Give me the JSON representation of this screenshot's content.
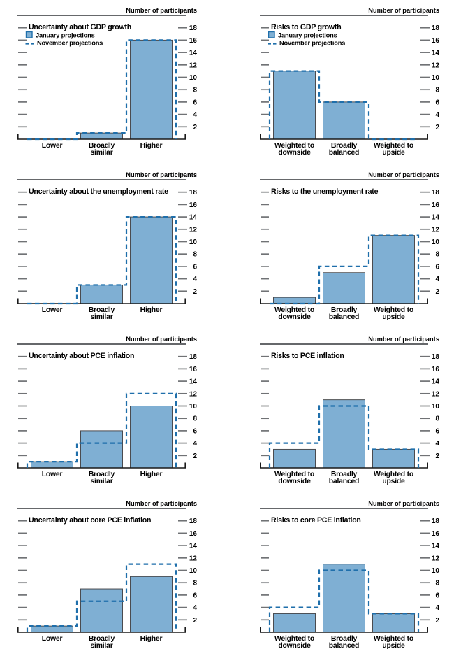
{
  "page": {
    "background": "#ffffff"
  },
  "palette": {
    "bar_fill": "#7fafd3",
    "bar_stroke": "#4a4b4f",
    "dashed_line": "#1f6fab",
    "tick": "#707275",
    "top_rule": "#515256",
    "baseline": "#1a1a1a",
    "text": "#000000"
  },
  "legend": {
    "january_label": "January projections",
    "november_label": "November projections",
    "january_swatch_icon": "bar-swatch-icon",
    "november_swatch_icon": "dashed-line-icon"
  },
  "axis": {
    "unit_label": "Number of participants",
    "yticks": [
      2,
      4,
      6,
      8,
      10,
      12,
      14,
      16,
      18
    ],
    "ylim": [
      0,
      19
    ],
    "grid": false,
    "tick_side": "right-labeled-left-unlabeled"
  },
  "chart_data": [
    {
      "type": "bar",
      "title": "Uncertainty about GDP growth",
      "top_right_label": "Number of participants",
      "categories": [
        [
          "Lower"
        ],
        [
          "Broadly",
          "similar"
        ],
        [
          "Higher"
        ]
      ],
      "series": [
        {
          "name": "January projections",
          "style": "bar",
          "values": [
            0,
            1,
            16
          ]
        },
        {
          "name": "November projections",
          "style": "dashed-step-outline",
          "values": [
            0,
            1,
            16
          ]
        }
      ],
      "show_legend": true,
      "ylim": [
        0,
        19
      ],
      "yticks": [
        2,
        4,
        6,
        8,
        10,
        12,
        14,
        16,
        18
      ],
      "legend_position": "top-left"
    },
    {
      "type": "bar",
      "title": "Risks to GDP growth",
      "top_right_label": "Number of participants",
      "categories": [
        [
          "Weighted to",
          "downside"
        ],
        [
          "Broadly",
          "balanced"
        ],
        [
          "Weighted to",
          "upside"
        ]
      ],
      "series": [
        {
          "name": "January projections",
          "style": "bar",
          "values": [
            11,
            6,
            0
          ]
        },
        {
          "name": "November projections",
          "style": "dashed-step-outline",
          "values": [
            11,
            6,
            0
          ]
        }
      ],
      "show_legend": true,
      "ylim": [
        0,
        19
      ],
      "yticks": [
        2,
        4,
        6,
        8,
        10,
        12,
        14,
        16,
        18
      ],
      "legend_position": "top-left"
    },
    {
      "type": "bar",
      "title": "Uncertainty about the unemployment rate",
      "top_right_label": "Number of participants",
      "categories": [
        [
          "Lower"
        ],
        [
          "Broadly",
          "similar"
        ],
        [
          "Higher"
        ]
      ],
      "series": [
        {
          "name": "January projections",
          "style": "bar",
          "values": [
            0,
            3,
            14
          ]
        },
        {
          "name": "November projections",
          "style": "dashed-step-outline",
          "values": [
            0,
            3,
            14
          ]
        }
      ],
      "show_legend": false,
      "ylim": [
        0,
        19
      ],
      "yticks": [
        2,
        4,
        6,
        8,
        10,
        12,
        14,
        16,
        18
      ]
    },
    {
      "type": "bar",
      "title": "Risks to the unemployment rate",
      "top_right_label": "Number of participants",
      "categories": [
        [
          "Weighted to",
          "downside"
        ],
        [
          "Broadly",
          "balanced"
        ],
        [
          "Weighted to",
          "upside"
        ]
      ],
      "series": [
        {
          "name": "January projections",
          "style": "bar",
          "values": [
            1,
            5,
            11
          ]
        },
        {
          "name": "November projections",
          "style": "dashed-step-outline",
          "values": [
            0,
            6,
            11
          ]
        }
      ],
      "show_legend": false,
      "ylim": [
        0,
        19
      ],
      "yticks": [
        2,
        4,
        6,
        8,
        10,
        12,
        14,
        16,
        18
      ]
    },
    {
      "type": "bar",
      "title": "Uncertainty about PCE inflation",
      "top_right_label": "Number of participants",
      "categories": [
        [
          "Lower"
        ],
        [
          "Broadly",
          "similar"
        ],
        [
          "Higher"
        ]
      ],
      "series": [
        {
          "name": "January projections",
          "style": "bar",
          "values": [
            1,
            6,
            10
          ]
        },
        {
          "name": "November projections",
          "style": "dashed-step-outline",
          "values": [
            1,
            4,
            12
          ]
        }
      ],
      "show_legend": false,
      "ylim": [
        0,
        19
      ],
      "yticks": [
        2,
        4,
        6,
        8,
        10,
        12,
        14,
        16,
        18
      ]
    },
    {
      "type": "bar",
      "title": "Risks to PCE inflation",
      "top_right_label": "Number of participants",
      "categories": [
        [
          "Weighted to",
          "downside"
        ],
        [
          "Broadly",
          "balanced"
        ],
        [
          "Weighted to",
          "upside"
        ]
      ],
      "series": [
        {
          "name": "January projections",
          "style": "bar",
          "values": [
            3,
            11,
            3
          ]
        },
        {
          "name": "November projections",
          "style": "dashed-step-outline",
          "values": [
            4,
            10,
            3
          ]
        }
      ],
      "show_legend": false,
      "ylim": [
        0,
        19
      ],
      "yticks": [
        2,
        4,
        6,
        8,
        10,
        12,
        14,
        16,
        18
      ]
    },
    {
      "type": "bar",
      "title": "Uncertainty about core PCE inflation",
      "top_right_label": "Number of participants",
      "categories": [
        [
          "Lower"
        ],
        [
          "Broadly",
          "similar"
        ],
        [
          "Higher"
        ]
      ],
      "series": [
        {
          "name": "January projections",
          "style": "bar",
          "values": [
            1,
            7,
            9
          ]
        },
        {
          "name": "November projections",
          "style": "dashed-step-outline",
          "values": [
            1,
            5,
            11
          ]
        }
      ],
      "show_legend": false,
      "ylim": [
        0,
        19
      ],
      "yticks": [
        2,
        4,
        6,
        8,
        10,
        12,
        14,
        16,
        18
      ]
    },
    {
      "type": "bar",
      "title": "Risks to core PCE inflation",
      "top_right_label": "Number of participants",
      "categories": [
        [
          "Weighted to",
          "downside"
        ],
        [
          "Broadly",
          "balanced"
        ],
        [
          "Weighted to",
          "upside"
        ]
      ],
      "series": [
        {
          "name": "January projections",
          "style": "bar",
          "values": [
            3,
            11,
            3
          ]
        },
        {
          "name": "November projections",
          "style": "dashed-step-outline",
          "values": [
            4,
            10,
            3
          ]
        }
      ],
      "show_legend": false,
      "ylim": [
        0,
        19
      ],
      "yticks": [
        2,
        4,
        6,
        8,
        10,
        12,
        14,
        16,
        18
      ]
    }
  ]
}
